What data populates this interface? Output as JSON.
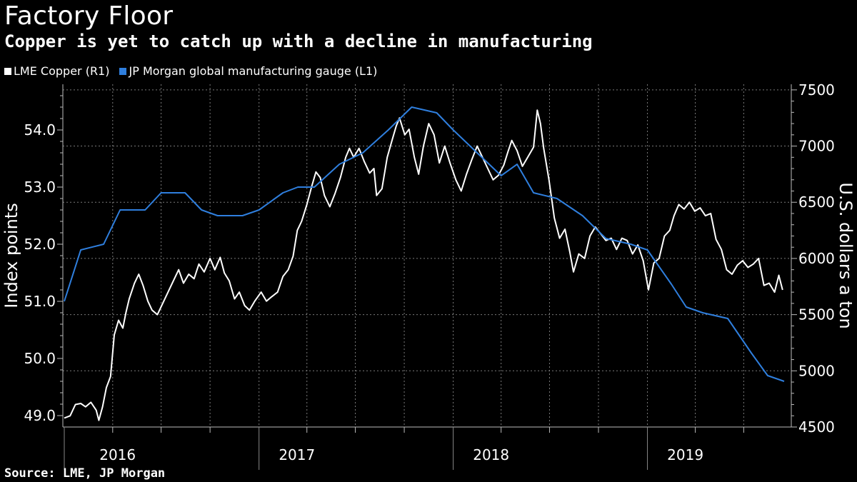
{
  "title": "Factory Floor",
  "subtitle": "Copper is yet to catch up with a decline in manufacturing",
  "source": "Source: LME, JP Morgan",
  "chart_data": {
    "type": "line",
    "left_axis": {
      "label": "Index points",
      "ylim": [
        48.8,
        54.8
      ],
      "ticks": [
        "49.0",
        "50.0",
        "51.0",
        "52.0",
        "53.0",
        "54.0"
      ]
    },
    "right_axis": {
      "label": "U.S. dollars a ton",
      "ylim": [
        4500,
        7550
      ],
      "ticks": [
        "4500",
        "5000",
        "5500",
        "6000",
        "6500",
        "7000",
        "7500"
      ]
    },
    "x_range": [
      "2016-01-01",
      "2019-09-15"
    ],
    "year_labels": [
      {
        "label": "2016",
        "date": "2016-03-01"
      },
      {
        "label": "2017",
        "date": "2017-02-01"
      },
      {
        "label": "2018",
        "date": "2018-02-01"
      },
      {
        "label": "2019",
        "date": "2019-02-01"
      }
    ],
    "grid": true,
    "legend_position": "top-left",
    "series": [
      {
        "name": "LME Copper (R1)",
        "axis": "right",
        "color": "#ffffff",
        "points": [
          [
            "2016-01-01",
            4580
          ],
          [
            "2016-01-12",
            4600
          ],
          [
            "2016-01-22",
            4700
          ],
          [
            "2016-02-01",
            4710
          ],
          [
            "2016-02-10",
            4680
          ],
          [
            "2016-02-20",
            4720
          ],
          [
            "2016-03-01",
            4650
          ],
          [
            "2016-03-06",
            4560
          ],
          [
            "2016-03-13",
            4680
          ],
          [
            "2016-03-20",
            4850
          ],
          [
            "2016-03-28",
            4950
          ],
          [
            "2016-04-04",
            5320
          ],
          [
            "2016-04-12",
            5450
          ],
          [
            "2016-04-20",
            5380
          ],
          [
            "2016-04-26",
            5520
          ],
          [
            "2016-05-02",
            5640
          ],
          [
            "2016-05-12",
            5780
          ],
          [
            "2016-05-20",
            5860
          ],
          [
            "2016-05-28",
            5760
          ],
          [
            "2016-06-06",
            5620
          ],
          [
            "2016-06-14",
            5540
          ],
          [
            "2016-06-24",
            5500
          ],
          [
            "2016-07-04",
            5600
          ],
          [
            "2016-07-14",
            5700
          ],
          [
            "2016-07-24",
            5800
          ],
          [
            "2016-08-03",
            5900
          ],
          [
            "2016-08-12",
            5780
          ],
          [
            "2016-08-22",
            5860
          ],
          [
            "2016-09-01",
            5820
          ],
          [
            "2016-09-10",
            5950
          ],
          [
            "2016-09-20",
            5880
          ],
          [
            "2016-10-01",
            6000
          ],
          [
            "2016-10-10",
            5900
          ],
          [
            "2016-10-20",
            6010
          ],
          [
            "2016-10-28",
            5870
          ],
          [
            "2016-11-06",
            5800
          ],
          [
            "2016-11-16",
            5640
          ],
          [
            "2016-11-25",
            5700
          ],
          [
            "2016-12-05",
            5580
          ],
          [
            "2016-12-14",
            5540
          ],
          [
            "2016-12-24",
            5620
          ],
          [
            "2017-01-05",
            5700
          ],
          [
            "2017-01-15",
            5620
          ],
          [
            "2017-01-25",
            5660
          ],
          [
            "2017-02-05",
            5700
          ],
          [
            "2017-02-15",
            5840
          ],
          [
            "2017-02-25",
            5900
          ],
          [
            "2017-03-06",
            6020
          ],
          [
            "2017-03-14",
            6250
          ],
          [
            "2017-03-22",
            6330
          ],
          [
            "2017-04-01",
            6480
          ],
          [
            "2017-04-10",
            6640
          ],
          [
            "2017-04-18",
            6770
          ],
          [
            "2017-04-26",
            6720
          ],
          [
            "2017-05-04",
            6560
          ],
          [
            "2017-05-14",
            6460
          ],
          [
            "2017-05-24",
            6580
          ],
          [
            "2017-06-03",
            6720
          ],
          [
            "2017-06-13",
            6900
          ],
          [
            "2017-06-20",
            6980
          ],
          [
            "2017-06-28",
            6900
          ],
          [
            "2017-07-08",
            6980
          ],
          [
            "2017-07-18",
            6860
          ],
          [
            "2017-07-28",
            6760
          ],
          [
            "2017-08-05",
            6800
          ],
          [
            "2017-08-10",
            6560
          ],
          [
            "2017-08-20",
            6620
          ],
          [
            "2017-08-30",
            6900
          ],
          [
            "2017-09-08",
            7050
          ],
          [
            "2017-09-16",
            7180
          ],
          [
            "2017-09-22",
            7250
          ],
          [
            "2017-10-02",
            7100
          ],
          [
            "2017-10-10",
            7150
          ],
          [
            "2017-10-20",
            6900
          ],
          [
            "2017-10-28",
            6750
          ],
          [
            "2017-11-06",
            7000
          ],
          [
            "2017-11-16",
            7200
          ],
          [
            "2017-11-26",
            7100
          ],
          [
            "2017-12-06",
            6850
          ],
          [
            "2017-12-16",
            7000
          ],
          [
            "2017-12-26",
            6850
          ],
          [
            "2018-01-06",
            6700
          ],
          [
            "2018-01-16",
            6600
          ],
          [
            "2018-01-26",
            6750
          ],
          [
            "2018-02-05",
            6880
          ],
          [
            "2018-02-15",
            7000
          ],
          [
            "2018-02-25",
            6900
          ],
          [
            "2018-03-07",
            6800
          ],
          [
            "2018-03-17",
            6700
          ],
          [
            "2018-03-27",
            6740
          ],
          [
            "2018-04-06",
            6830
          ],
          [
            "2018-04-14",
            6950
          ],
          [
            "2018-04-21",
            7050
          ],
          [
            "2018-05-01",
            6960
          ],
          [
            "2018-05-11",
            6820
          ],
          [
            "2018-05-21",
            6900
          ],
          [
            "2018-06-01",
            6990
          ],
          [
            "2018-06-08",
            7320
          ],
          [
            "2018-06-14",
            7200
          ],
          [
            "2018-06-20",
            6980
          ],
          [
            "2018-06-30",
            6700
          ],
          [
            "2018-07-10",
            6360
          ],
          [
            "2018-07-20",
            6180
          ],
          [
            "2018-07-30",
            6260
          ],
          [
            "2018-08-08",
            6060
          ],
          [
            "2018-08-15",
            5880
          ],
          [
            "2018-08-25",
            6040
          ],
          [
            "2018-09-05",
            6000
          ],
          [
            "2018-09-15",
            6200
          ],
          [
            "2018-09-25",
            6280
          ],
          [
            "2018-10-05",
            6220
          ],
          [
            "2018-10-15",
            6160
          ],
          [
            "2018-10-25",
            6180
          ],
          [
            "2018-11-04",
            6080
          ],
          [
            "2018-11-14",
            6180
          ],
          [
            "2018-11-24",
            6160
          ],
          [
            "2018-12-04",
            6040
          ],
          [
            "2018-12-14",
            6120
          ],
          [
            "2018-12-24",
            5980
          ],
          [
            "2019-01-03",
            5720
          ],
          [
            "2019-01-13",
            5960
          ],
          [
            "2019-01-23",
            6000
          ],
          [
            "2019-02-02",
            6200
          ],
          [
            "2019-02-12",
            6250
          ],
          [
            "2019-02-20",
            6380
          ],
          [
            "2019-03-01",
            6480
          ],
          [
            "2019-03-11",
            6440
          ],
          [
            "2019-03-21",
            6500
          ],
          [
            "2019-03-31",
            6420
          ],
          [
            "2019-04-10",
            6450
          ],
          [
            "2019-04-20",
            6380
          ],
          [
            "2019-04-30",
            6400
          ],
          [
            "2019-05-10",
            6170
          ],
          [
            "2019-05-20",
            6080
          ],
          [
            "2019-05-30",
            5900
          ],
          [
            "2019-06-09",
            5860
          ],
          [
            "2019-06-19",
            5940
          ],
          [
            "2019-06-29",
            5980
          ],
          [
            "2019-07-09",
            5920
          ],
          [
            "2019-07-19",
            5950
          ],
          [
            "2019-07-29",
            6000
          ],
          [
            "2019-08-08",
            5760
          ],
          [
            "2019-08-18",
            5780
          ],
          [
            "2019-08-28",
            5700
          ],
          [
            "2019-09-05",
            5850
          ],
          [
            "2019-09-12",
            5720
          ]
        ]
      },
      {
        "name": "JP Morgan global manufacturing gauge (L1)",
        "axis": "left",
        "color": "#2f7fde",
        "points": [
          [
            "2016-01-01",
            51.0
          ],
          [
            "2016-02-01",
            51.9
          ],
          [
            "2016-03-15",
            52.0
          ],
          [
            "2016-04-15",
            52.6
          ],
          [
            "2016-06-01",
            52.6
          ],
          [
            "2016-07-01",
            52.9
          ],
          [
            "2016-08-15",
            52.9
          ],
          [
            "2016-09-15",
            52.6
          ],
          [
            "2016-10-15",
            52.5
          ],
          [
            "2016-12-01",
            52.5
          ],
          [
            "2017-01-01",
            52.6
          ],
          [
            "2017-02-15",
            52.9
          ],
          [
            "2017-03-15",
            53.0
          ],
          [
            "2017-04-15",
            53.0
          ],
          [
            "2017-06-01",
            53.4
          ],
          [
            "2017-07-15",
            53.6
          ],
          [
            "2017-09-01",
            54.0
          ],
          [
            "2017-10-15",
            54.4
          ],
          [
            "2017-12-01",
            54.3
          ],
          [
            "2018-01-01",
            54.0
          ],
          [
            "2018-02-15",
            53.6
          ],
          [
            "2018-04-01",
            53.2
          ],
          [
            "2018-05-01",
            53.4
          ],
          [
            "2018-06-01",
            52.9
          ],
          [
            "2018-07-15",
            52.8
          ],
          [
            "2018-09-01",
            52.5
          ],
          [
            "2018-10-15",
            52.1
          ],
          [
            "2018-12-01",
            52.0
          ],
          [
            "2019-01-01",
            51.9
          ],
          [
            "2019-02-15",
            51.3
          ],
          [
            "2019-03-15",
            50.9
          ],
          [
            "2019-04-15",
            50.8
          ],
          [
            "2019-06-01",
            50.7
          ],
          [
            "2019-07-15",
            50.1
          ],
          [
            "2019-08-15",
            49.7
          ],
          [
            "2019-09-15",
            49.6
          ]
        ]
      }
    ]
  }
}
